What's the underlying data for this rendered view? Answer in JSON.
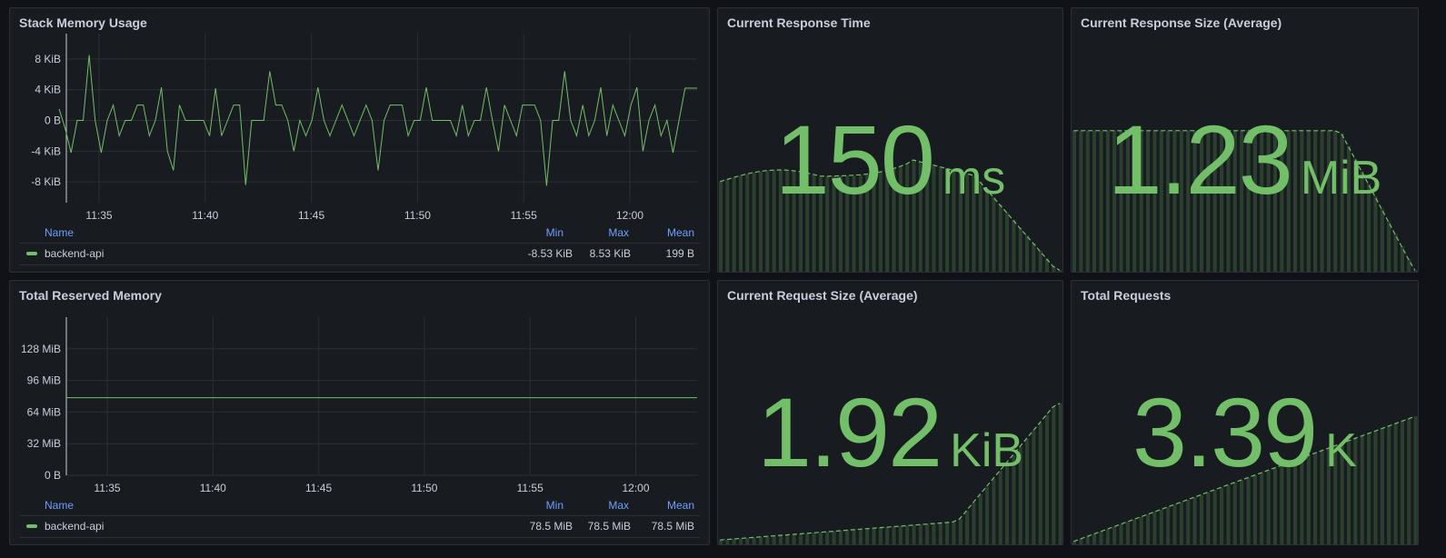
{
  "colors": {
    "series": "#73bf69",
    "grid": "#2c2f35",
    "header": "#6e9fff",
    "panel_bg": "#181b1f",
    "page_bg": "#111217"
  },
  "panels": {
    "stack_memory": {
      "title": "Stack Memory Usage",
      "legend": {
        "headers": {
          "name": "Name",
          "min": "Min",
          "max": "Max",
          "mean": "Mean"
        },
        "series_name": "backend-api",
        "min": "-8.53 KiB",
        "max": "8.53 KiB",
        "mean": "199 B"
      }
    },
    "total_reserved": {
      "title": "Total Reserved Memory",
      "legend": {
        "headers": {
          "name": "Name",
          "min": "Min",
          "max": "Max",
          "mean": "Mean"
        },
        "series_name": "backend-api",
        "min": "78.5 MiB",
        "max": "78.5 MiB",
        "mean": "78.5 MiB"
      }
    },
    "response_time": {
      "title": "Current Response Time",
      "value": "150",
      "unit": "ms",
      "sparkline_trend": "flat-hump-then-drop"
    },
    "response_size": {
      "title": "Current Response Size (Average)",
      "value": "1.23",
      "unit": "MiB",
      "sparkline_trend": "flat-then-drop"
    },
    "request_size": {
      "title": "Current Request Size (Average)",
      "value": "1.92",
      "unit": "KiB",
      "sparkline_trend": "slow-rise-then-sharp-rise"
    },
    "total_requests": {
      "title": "Total Requests",
      "value": "3.39",
      "unit": "K",
      "sparkline_trend": "steady-rise"
    }
  },
  "chart_data": [
    {
      "type": "line",
      "panel": "Stack Memory Usage",
      "series": [
        {
          "name": "backend-api",
          "values": [
            1.5,
            -1,
            -4.2,
            0,
            0,
            8.5,
            0,
            -4.2,
            0,
            2,
            -2,
            0,
            0,
            2,
            2,
            -2,
            0,
            4.3,
            -4,
            -6.5,
            2,
            0,
            0,
            0,
            0,
            -2,
            4.2,
            -2,
            0,
            2,
            2,
            -8.4,
            0,
            0,
            0,
            6.4,
            2,
            2,
            0,
            -4,
            0,
            -2,
            0,
            4.3,
            0,
            -2,
            0,
            2,
            0,
            -2,
            0,
            2,
            0,
            -6.5,
            0,
            2,
            2,
            2,
            -2,
            0,
            0,
            4.3,
            0,
            0,
            0,
            0,
            -2,
            2,
            -2,
            0,
            0,
            4.3,
            0,
            -4,
            2,
            0,
            -2,
            2,
            2,
            2,
            0,
            -8.5,
            0,
            0,
            6.4,
            0,
            -2,
            2,
            -2,
            0,
            4.3,
            -2,
            2,
            0,
            -2,
            2,
            4.3,
            -4,
            0,
            2,
            -2,
            0,
            -4.2,
            0,
            4.2,
            4.2,
            4.2
          ]
        }
      ],
      "x_tick_labels": [
        "11:35",
        "11:40",
        "11:45",
        "11:50",
        "11:55",
        "12:00"
      ],
      "y_tick_labels": [
        "8 KiB",
        "4 KiB",
        "0 B",
        "-4 KiB",
        "-8 KiB"
      ],
      "ylim_kib": [
        -10.7,
        11.3
      ],
      "grid": true,
      "legend_placement": "bottom-table"
    },
    {
      "type": "line",
      "panel": "Total Reserved Memory",
      "series": [
        {
          "name": "backend-api",
          "values_mib": [
            78.5,
            78.5
          ]
        }
      ],
      "x_tick_labels": [
        "11:35",
        "11:40",
        "11:45",
        "11:50",
        "11:55",
        "12:00"
      ],
      "y_tick_labels": [
        "128 MiB",
        "96 MiB",
        "64 MiB",
        "32 MiB",
        "0 B"
      ],
      "ylim_mib": [
        0,
        160
      ],
      "grid": true,
      "legend_placement": "bottom-table"
    }
  ]
}
